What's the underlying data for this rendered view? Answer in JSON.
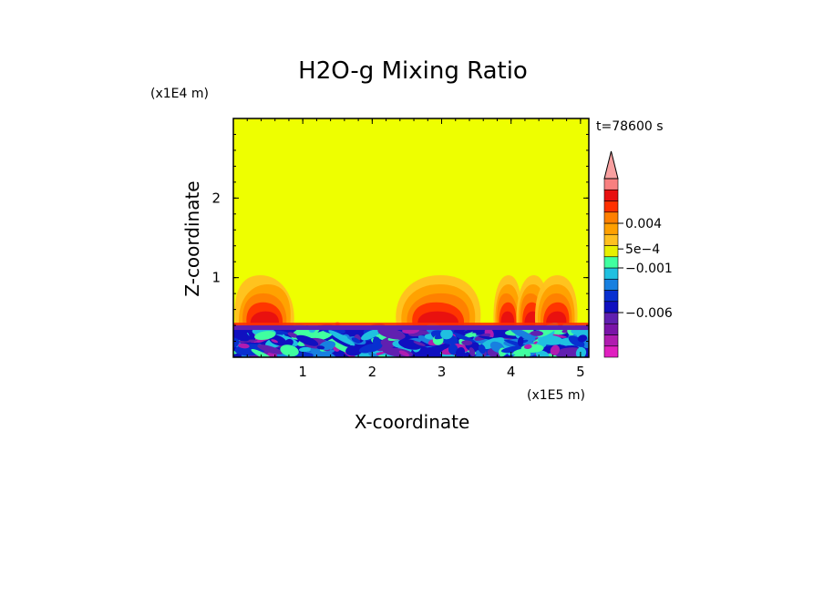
{
  "chart_data": {
    "type": "heatmap",
    "title": "H2O-g Mixing Ratio",
    "xlabel": "X-coordinate",
    "ylabel": "Z-coordinate",
    "x_scale_label": "(x1E5 m)",
    "y_scale_label": "(x1E4 m)",
    "time_label": "t=78600 s",
    "xlim": [
      0,
      5.12
    ],
    "ylim": [
      0,
      3.0
    ],
    "x_ticks": [
      {
        "value": 1,
        "label": "1"
      },
      {
        "value": 2,
        "label": "2"
      },
      {
        "value": 3,
        "label": "3"
      },
      {
        "value": 4,
        "label": "4"
      },
      {
        "value": 5,
        "label": "5"
      }
    ],
    "y_ticks": [
      {
        "value": 1,
        "label": "1"
      },
      {
        "value": 2,
        "label": "2"
      }
    ],
    "colorbar": {
      "levels": [
        "#e020c0",
        "#b01cb0",
        "#7a14a8",
        "#6020b0",
        "#1010c0",
        "#0830d0",
        "#1880e0",
        "#20c0e0",
        "#40ffa0",
        "#e8f000",
        "#ffc020",
        "#ffa000",
        "#ff8000",
        "#ff3000",
        "#e81010",
        "#f88080"
      ],
      "labels": [
        {
          "level": 4,
          "text": "−0.006"
        },
        {
          "level": 8,
          "text": "−0.001"
        },
        {
          "level": 9.7,
          "text": "5e−4"
        },
        {
          "level": 12,
          "text": "0.004"
        }
      ],
      "extend_max_color": "#f8a0a0"
    },
    "background_value_color": "#eeff00",
    "lower_layer": {
      "top_z": 0.4,
      "colors": [
        "#1010c0",
        "#0830d0",
        "#6020b0",
        "#1880e0",
        "#20c0e0",
        "#40ffa0",
        "#b01cb0"
      ]
    },
    "plumes": [
      {
        "x": 0.45,
        "base_z": 0.4,
        "top_z": 1.03,
        "half_width": 0.42
      },
      {
        "x": 1.5,
        "base_z": 0.4,
        "top_z": 0.45,
        "half_width": 0.04
      },
      {
        "x": 2.95,
        "base_z": 0.4,
        "top_z": 1.03,
        "half_width": 0.6
      },
      {
        "x": 3.95,
        "base_z": 0.4,
        "top_z": 1.03,
        "half_width": 0.2
      },
      {
        "x": 4.3,
        "base_z": 0.4,
        "top_z": 1.03,
        "half_width": 0.22
      },
      {
        "x": 4.65,
        "base_z": 0.4,
        "top_z": 1.03,
        "half_width": 0.3
      }
    ]
  }
}
